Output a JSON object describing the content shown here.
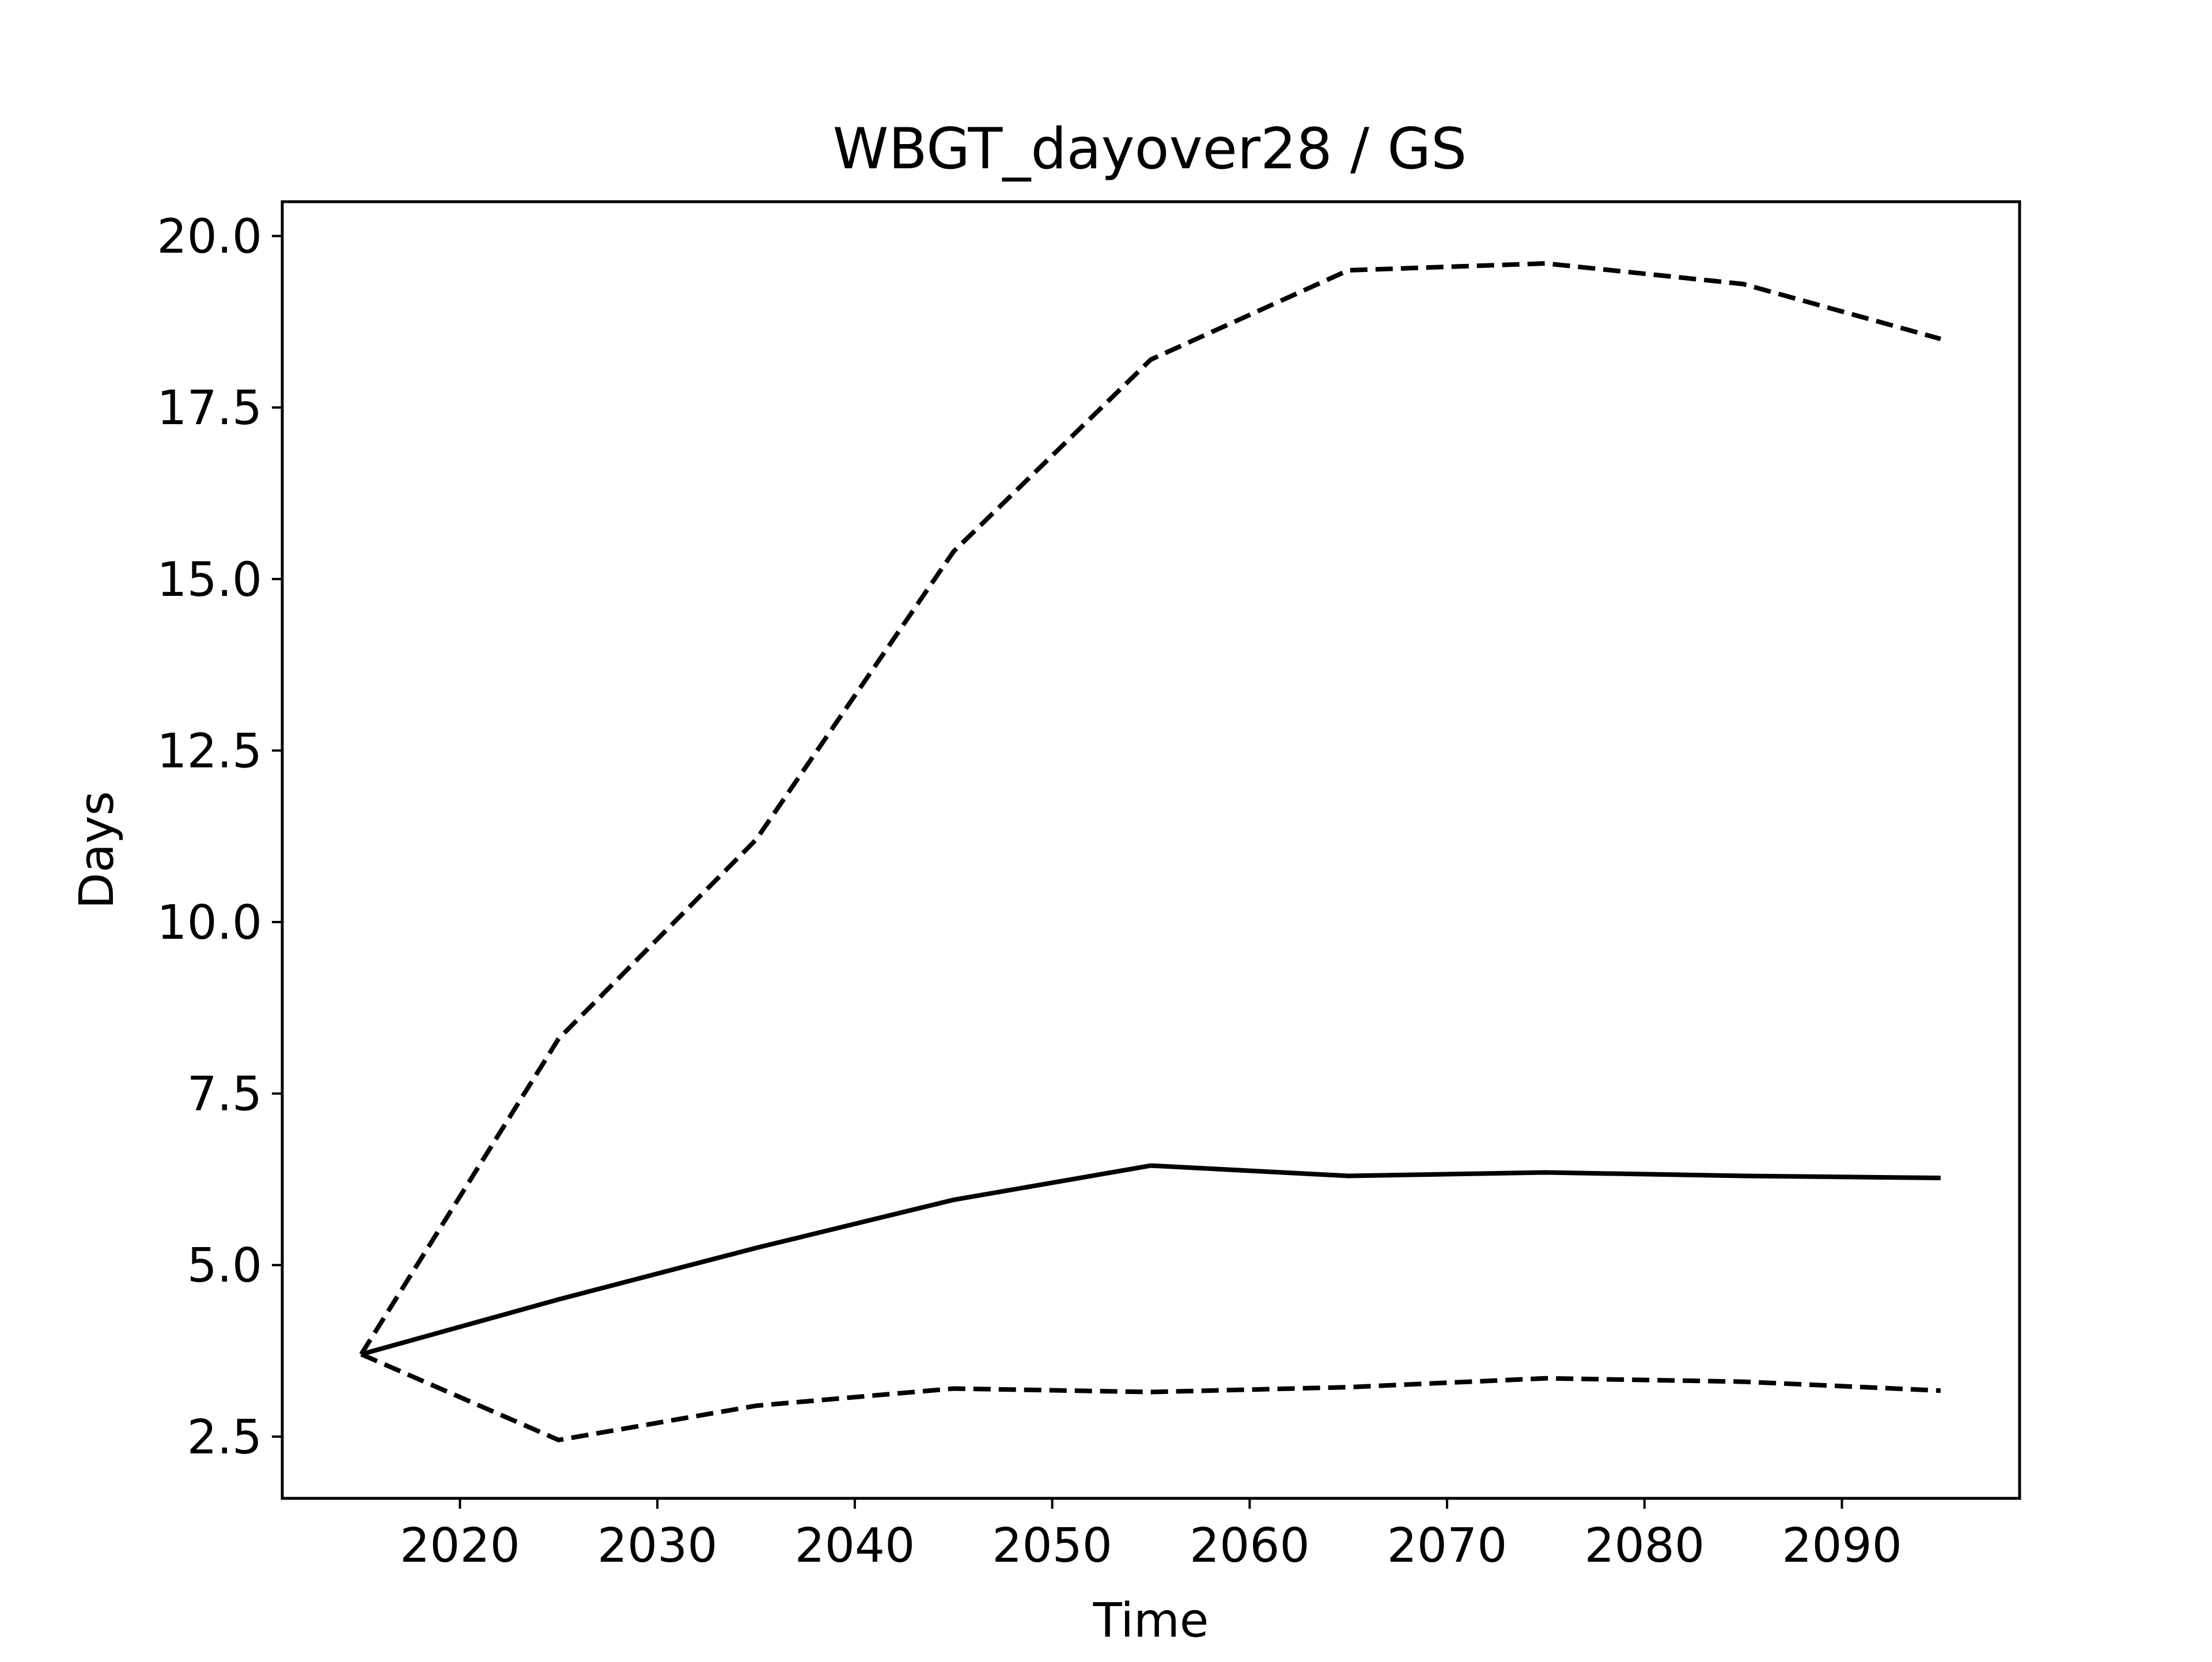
{
  "chart_data": {
    "type": "line",
    "title": "WBGT_dayover28 / GS",
    "xlabel": "Time",
    "ylabel": "Days",
    "x": [
      2015,
      2025,
      2035,
      2045,
      2055,
      2065,
      2075,
      2085,
      2095
    ],
    "series": [
      {
        "style": "dashed",
        "values": [
          3.7,
          8.3,
          11.2,
          15.4,
          18.2,
          19.5,
          19.6,
          19.3,
          18.5
        ]
      },
      {
        "style": "solid",
        "values": [
          3.7,
          4.5,
          5.25,
          5.95,
          6.45,
          6.3,
          6.35,
          6.3,
          6.27
        ]
      },
      {
        "style": "dashed",
        "values": [
          3.7,
          2.45,
          2.95,
          3.2,
          3.15,
          3.22,
          3.35,
          3.3,
          3.17
        ]
      }
    ],
    "xlim": [
      2011,
      2099
    ],
    "ylim": [
      1.6,
      20.5
    ],
    "xticks": [
      2020,
      2030,
      2040,
      2050,
      2060,
      2070,
      2080,
      2090
    ],
    "xtick_labels": [
      "2020",
      "2030",
      "2040",
      "2050",
      "2060",
      "2070",
      "2080",
      "2090"
    ],
    "yticks": [
      2.5,
      5.0,
      7.5,
      10.0,
      12.5,
      15.0,
      17.5,
      20.0
    ],
    "ytick_labels": [
      "2.5",
      "5.0",
      "7.5",
      "10.0",
      "12.5",
      "15.0",
      "17.5",
      "20.0"
    ],
    "grid": false,
    "legend": "none",
    "colors": {
      "line": "#000000",
      "frame": "#000000",
      "background": "#ffffff"
    }
  }
}
